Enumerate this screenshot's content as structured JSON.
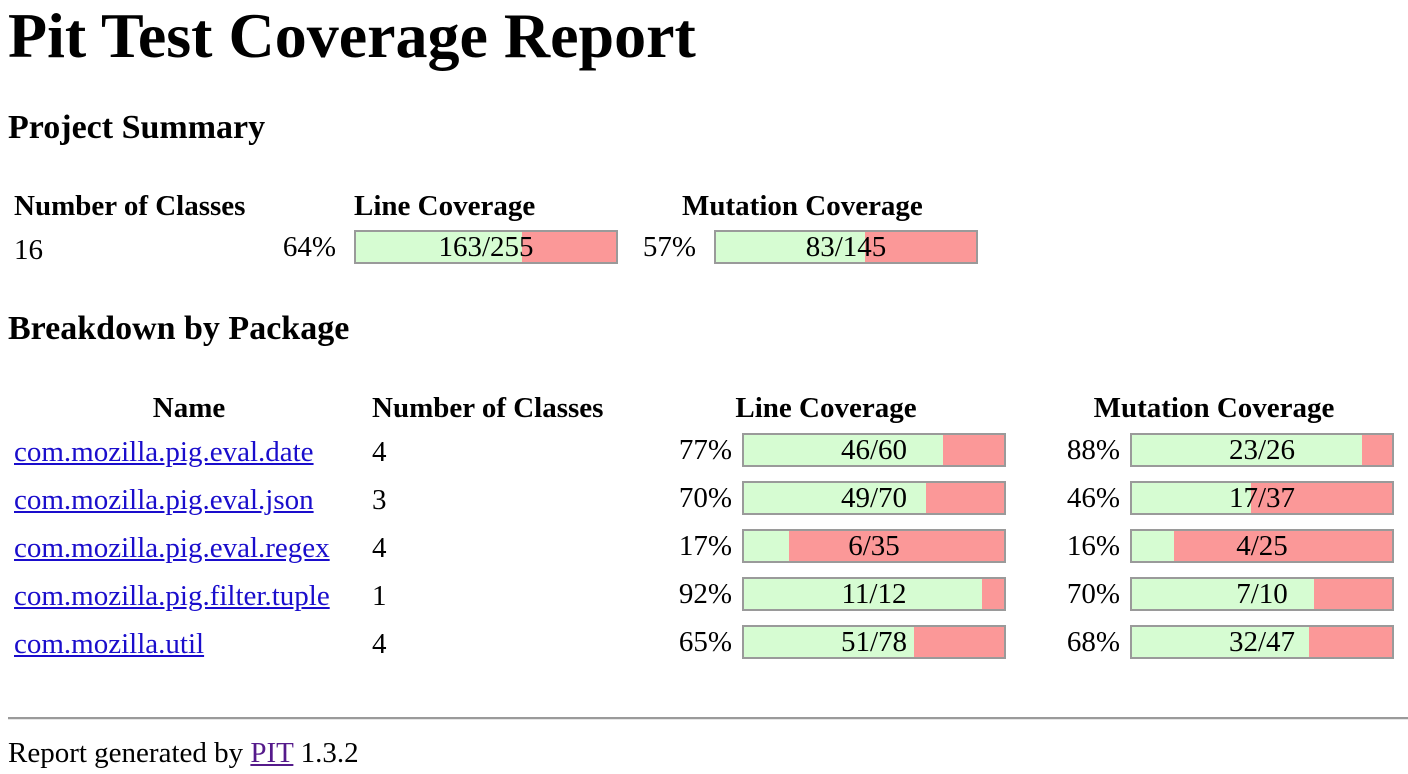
{
  "title": "Pit Test Coverage Report",
  "summary": {
    "heading": "Project Summary",
    "headers": {
      "classes": "Number of Classes",
      "line": "Line Coverage",
      "mutation": "Mutation Coverage"
    },
    "classes": "16",
    "line": {
      "pct": "64%",
      "ratio": "163/255",
      "covered": 163,
      "total": 255
    },
    "mutation": {
      "pct": "57%",
      "ratio": "83/145",
      "covered": 83,
      "total": 145
    }
  },
  "breakdown": {
    "heading": "Breakdown by Package",
    "headers": {
      "name": "Name",
      "classes": "Number of Classes",
      "line": "Line Coverage",
      "mutation": "Mutation Coverage"
    },
    "rows": [
      {
        "name": "com.mozilla.pig.eval.date",
        "classes": "4",
        "line": {
          "pct": "77%",
          "ratio": "46/60",
          "covered": 46,
          "total": 60
        },
        "mutation": {
          "pct": "88%",
          "ratio": "23/26",
          "covered": 23,
          "total": 26
        }
      },
      {
        "name": "com.mozilla.pig.eval.json",
        "classes": "3",
        "line": {
          "pct": "70%",
          "ratio": "49/70",
          "covered": 49,
          "total": 70
        },
        "mutation": {
          "pct": "46%",
          "ratio": "17/37",
          "covered": 17,
          "total": 37
        }
      },
      {
        "name": "com.mozilla.pig.eval.regex",
        "classes": "4",
        "line": {
          "pct": "17%",
          "ratio": "6/35",
          "covered": 6,
          "total": 35
        },
        "mutation": {
          "pct": "16%",
          "ratio": "4/25",
          "covered": 4,
          "total": 25
        }
      },
      {
        "name": "com.mozilla.pig.filter.tuple",
        "classes": "1",
        "line": {
          "pct": "92%",
          "ratio": "11/12",
          "covered": 11,
          "total": 12
        },
        "mutation": {
          "pct": "70%",
          "ratio": "7/10",
          "covered": 7,
          "total": 10
        }
      },
      {
        "name": "com.mozilla.util",
        "classes": "4",
        "line": {
          "pct": "65%",
          "ratio": "51/78",
          "covered": 51,
          "total": 78
        },
        "mutation": {
          "pct": "68%",
          "ratio": "32/47",
          "covered": 32,
          "total": 47
        }
      }
    ]
  },
  "footer": {
    "prefix": "Report generated by",
    "link": "PIT",
    "version": "1.3.2"
  },
  "colors": {
    "covered": "#d6fcd2",
    "uncovered": "#fb9898",
    "border": "#9a9a9a",
    "link": "#1a0dcc",
    "visited_link": "#551a8b"
  }
}
